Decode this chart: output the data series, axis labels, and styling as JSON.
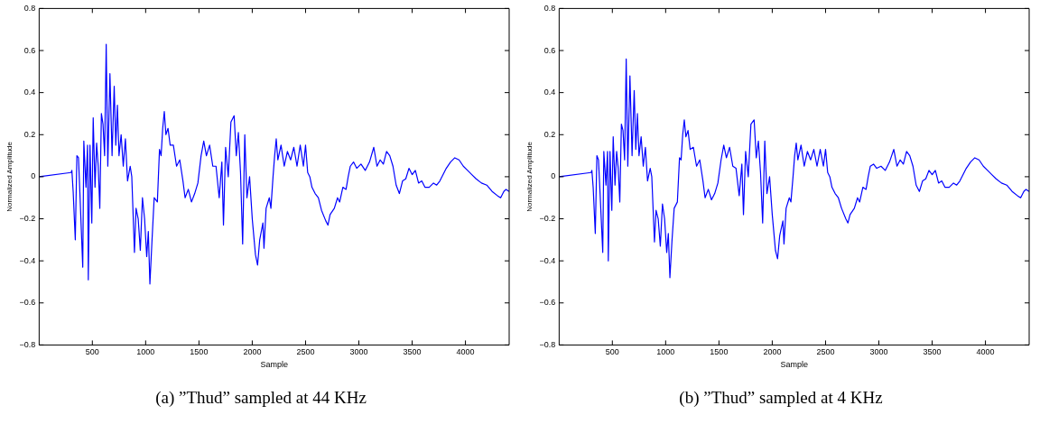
{
  "chart_data": [
    {
      "type": "line",
      "title": "(a) ”Thud” sampled at 44 KHz",
      "xlabel": "Sample",
      "ylabel": "Normalized Amplitude",
      "xlim": [
        1,
        4410
      ],
      "ylim": [
        -0.8,
        0.8
      ],
      "xticks": [
        500,
        1000,
        1500,
        2000,
        2500,
        3000,
        3500,
        4000
      ],
      "yticks": [
        {
          "value": -0.8,
          "label": "−0.8"
        },
        {
          "value": -0.6,
          "label": "−0.6"
        },
        {
          "value": -0.4,
          "label": "−0.4"
        },
        {
          "value": -0.2,
          "label": "−0.2"
        },
        0,
        0.2,
        0.4,
        0.6,
        0.8
      ],
      "grid": false,
      "legend": false,
      "marker": "none",
      "line_style": "solid",
      "series": [
        {
          "color": "#0000ff",
          "x": [
            1,
            300,
            308,
            320,
            340,
            355,
            370,
            385,
            410,
            420,
            440,
            455,
            462,
            478,
            495,
            508,
            525,
            540,
            555,
            570,
            585,
            600,
            615,
            630,
            645,
            665,
            685,
            705,
            720,
            735,
            750,
            770,
            790,
            810,
            830,
            855,
            870,
            895,
            910,
            930,
            950,
            970,
            990,
            1010,
            1025,
            1040,
            1060,
            1080,
            1110,
            1130,
            1145,
            1160,
            1175,
            1190,
            1210,
            1230,
            1260,
            1290,
            1320,
            1350,
            1370,
            1400,
            1430,
            1460,
            1490,
            1520,
            1545,
            1570,
            1600,
            1630,
            1660,
            1690,
            1715,
            1730,
            1750,
            1775,
            1800,
            1830,
            1850,
            1870,
            1890,
            1910,
            1930,
            1950,
            1975,
            2000,
            2030,
            2050,
            2070,
            2100,
            2110,
            2130,
            2160,
            2175,
            2195,
            2210,
            2225,
            2240,
            2270,
            2300,
            2330,
            2360,
            2390,
            2420,
            2450,
            2480,
            2500,
            2520,
            2540,
            2560,
            2590,
            2620,
            2650,
            2690,
            2710,
            2730,
            2770,
            2800,
            2820,
            2850,
            2880,
            2900,
            2920,
            2950,
            2980,
            3020,
            3060,
            3100,
            3140,
            3170,
            3200,
            3230,
            3260,
            3290,
            3320,
            3350,
            3380,
            3410,
            3440,
            3470,
            3500,
            3530,
            3560,
            3590,
            3620,
            3660,
            3700,
            3730,
            3760,
            3790,
            3820,
            3860,
            3900,
            3940,
            3980,
            4020,
            4060,
            4100,
            4150,
            4200,
            4250,
            4300,
            4330,
            4360,
            4380,
            4410
          ],
          "values": [
            0.0,
            0.02,
            0.03,
            -0.07,
            -0.3,
            0.1,
            0.09,
            -0.1,
            -0.43,
            0.17,
            -0.05,
            0.15,
            -0.49,
            0.15,
            -0.22,
            0.28,
            -0.05,
            0.16,
            0.05,
            -0.15,
            0.3,
            0.25,
            0.1,
            0.63,
            0.05,
            0.49,
            0.1,
            0.43,
            0.15,
            0.34,
            0.1,
            0.2,
            0.05,
            0.18,
            -0.02,
            0.05,
            0.0,
            -0.36,
            -0.15,
            -0.2,
            -0.35,
            -0.1,
            -0.2,
            -0.38,
            -0.26,
            -0.51,
            -0.3,
            -0.1,
            -0.12,
            0.13,
            0.1,
            0.23,
            0.31,
            0.2,
            0.23,
            0.15,
            0.15,
            0.05,
            0.08,
            -0.02,
            -0.1,
            -0.06,
            -0.12,
            -0.08,
            -0.03,
            0.1,
            0.17,
            0.1,
            0.15,
            0.05,
            0.05,
            -0.1,
            0.07,
            -0.23,
            0.14,
            0.0,
            0.26,
            0.29,
            0.1,
            0.21,
            0.02,
            -0.32,
            0.2,
            -0.1,
            0.0,
            -0.2,
            -0.37,
            -0.42,
            -0.3,
            -0.22,
            -0.34,
            -0.15,
            -0.1,
            -0.15,
            0.0,
            0.1,
            0.18,
            0.08,
            0.15,
            0.05,
            0.12,
            0.08,
            0.14,
            0.05,
            0.15,
            0.05,
            0.15,
            0.02,
            0.0,
            -0.05,
            -0.08,
            -0.1,
            -0.16,
            -0.21,
            -0.23,
            -0.18,
            -0.15,
            -0.1,
            -0.12,
            -0.05,
            -0.06,
            0.0,
            0.05,
            0.07,
            0.04,
            0.06,
            0.03,
            0.07,
            0.14,
            0.05,
            0.08,
            0.06,
            0.12,
            0.1,
            0.05,
            -0.04,
            -0.08,
            -0.02,
            -0.01,
            0.04,
            0.01,
            0.03,
            -0.03,
            -0.02,
            -0.05,
            -0.05,
            -0.03,
            -0.04,
            -0.02,
            0.01,
            0.04,
            0.07,
            0.09,
            0.08,
            0.05,
            0.03,
            0.01,
            -0.01,
            -0.03,
            -0.04,
            -0.07,
            -0.09,
            -0.1,
            -0.07,
            -0.06,
            -0.07
          ]
        }
      ]
    },
    {
      "type": "line",
      "title": "(b) ”Thud” sampled at 4 KHz",
      "xlabel": "Sample",
      "ylabel": "Normalized Amplitude",
      "xlim": [
        1,
        4410
      ],
      "ylim": [
        -0.8,
        0.8
      ],
      "xticks": [
        500,
        1000,
        1500,
        2000,
        2500,
        3000,
        3500,
        4000
      ],
      "yticks": [
        {
          "value": -0.8,
          "label": "−0.8"
        },
        {
          "value": -0.6,
          "label": "−0.6"
        },
        {
          "value": -0.4,
          "label": "−0.4"
        },
        {
          "value": -0.2,
          "label": "−0.2"
        },
        0,
        0.2,
        0.4,
        0.6,
        0.8
      ],
      "grid": false,
      "legend": false,
      "marker": "none",
      "line_style": "solid",
      "series": [
        {
          "color": "#0000ff",
          "x": [
            1,
            300,
            308,
            320,
            340,
            355,
            370,
            385,
            410,
            420,
            440,
            455,
            462,
            478,
            495,
            508,
            525,
            540,
            555,
            570,
            585,
            600,
            615,
            630,
            645,
            665,
            685,
            705,
            720,
            735,
            750,
            770,
            790,
            810,
            830,
            855,
            870,
            895,
            910,
            930,
            950,
            970,
            990,
            1010,
            1025,
            1040,
            1060,
            1080,
            1110,
            1130,
            1145,
            1160,
            1175,
            1190,
            1210,
            1230,
            1260,
            1290,
            1320,
            1350,
            1370,
            1400,
            1430,
            1460,
            1490,
            1520,
            1545,
            1570,
            1600,
            1630,
            1660,
            1690,
            1715,
            1730,
            1750,
            1775,
            1800,
            1830,
            1850,
            1870,
            1890,
            1910,
            1930,
            1950,
            1975,
            2000,
            2030,
            2050,
            2070,
            2100,
            2110,
            2130,
            2160,
            2175,
            2195,
            2210,
            2225,
            2240,
            2270,
            2300,
            2330,
            2360,
            2390,
            2420,
            2450,
            2480,
            2500,
            2520,
            2540,
            2560,
            2590,
            2620,
            2650,
            2690,
            2710,
            2730,
            2770,
            2800,
            2820,
            2850,
            2880,
            2900,
            2920,
            2950,
            2980,
            3020,
            3060,
            3100,
            3140,
            3170,
            3200,
            3230,
            3260,
            3290,
            3320,
            3350,
            3380,
            3410,
            3440,
            3470,
            3500,
            3530,
            3560,
            3590,
            3620,
            3660,
            3700,
            3730,
            3760,
            3790,
            3820,
            3860,
            3900,
            3940,
            3980,
            4020,
            4060,
            4100,
            4150,
            4200,
            4250,
            4300,
            4330,
            4360,
            4380,
            4410
          ],
          "values": [
            0.0,
            0.02,
            0.03,
            -0.05,
            -0.27,
            0.1,
            0.08,
            -0.08,
            -0.36,
            0.12,
            -0.04,
            0.12,
            -0.4,
            0.12,
            -0.16,
            0.19,
            -0.04,
            0.12,
            0.04,
            -0.12,
            0.25,
            0.22,
            0.08,
            0.56,
            0.05,
            0.48,
            0.1,
            0.41,
            0.13,
            0.3,
            0.1,
            0.19,
            0.05,
            0.14,
            -0.02,
            0.04,
            0.0,
            -0.31,
            -0.16,
            -0.2,
            -0.33,
            -0.13,
            -0.2,
            -0.36,
            -0.27,
            -0.48,
            -0.3,
            -0.15,
            -0.12,
            0.09,
            0.08,
            0.2,
            0.27,
            0.19,
            0.22,
            0.13,
            0.14,
            0.05,
            0.08,
            -0.02,
            -0.1,
            -0.06,
            -0.11,
            -0.08,
            -0.03,
            0.08,
            0.15,
            0.09,
            0.14,
            0.05,
            0.04,
            -0.09,
            0.06,
            -0.18,
            0.12,
            0.0,
            0.25,
            0.27,
            0.09,
            0.17,
            0.02,
            -0.22,
            0.17,
            -0.08,
            0.0,
            -0.18,
            -0.35,
            -0.39,
            -0.28,
            -0.21,
            -0.32,
            -0.15,
            -0.1,
            -0.12,
            0.0,
            0.1,
            0.16,
            0.08,
            0.15,
            0.05,
            0.12,
            0.08,
            0.13,
            0.05,
            0.13,
            0.05,
            0.13,
            0.02,
            0.0,
            -0.05,
            -0.08,
            -0.1,
            -0.15,
            -0.2,
            -0.22,
            -0.18,
            -0.15,
            -0.1,
            -0.12,
            -0.05,
            -0.06,
            0.0,
            0.05,
            0.06,
            0.04,
            0.05,
            0.03,
            0.07,
            0.13,
            0.05,
            0.08,
            0.06,
            0.12,
            0.1,
            0.05,
            -0.04,
            -0.07,
            -0.02,
            -0.01,
            0.03,
            0.01,
            0.03,
            -0.03,
            -0.02,
            -0.05,
            -0.05,
            -0.03,
            -0.04,
            -0.02,
            0.01,
            0.04,
            0.07,
            0.09,
            0.08,
            0.05,
            0.03,
            0.01,
            -0.01,
            -0.03,
            -0.04,
            -0.07,
            -0.09,
            -0.1,
            -0.07,
            -0.06,
            -0.07
          ]
        }
      ]
    }
  ]
}
